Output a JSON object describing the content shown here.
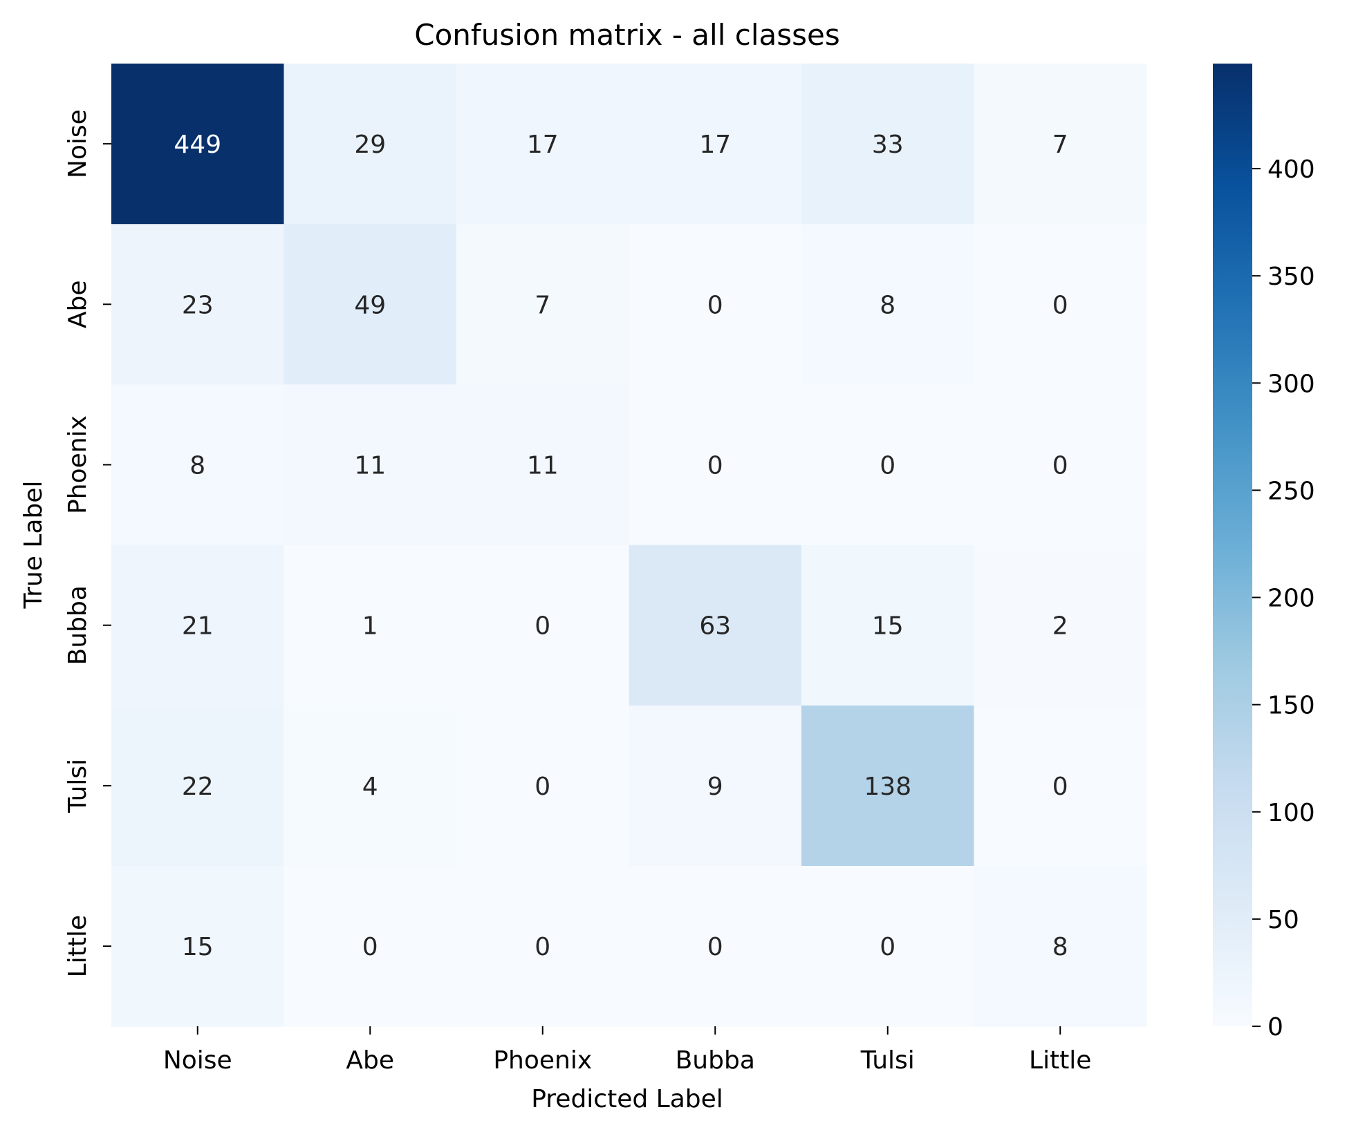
{
  "chart_data": {
    "type": "heatmap",
    "title": "Confusion matrix - all classes",
    "xlabel": "Predicted Label",
    "ylabel": "True Label",
    "x_categories": [
      "Noise",
      "Abe",
      "Phoenix",
      "Bubba",
      "Tulsi",
      "Little"
    ],
    "y_categories": [
      "Noise",
      "Abe",
      "Phoenix",
      "Bubba",
      "Tulsi",
      "Little"
    ],
    "values": [
      [
        449,
        29,
        17,
        17,
        33,
        7
      ],
      [
        23,
        49,
        7,
        0,
        8,
        0
      ],
      [
        8,
        11,
        11,
        0,
        0,
        0
      ],
      [
        21,
        1,
        0,
        63,
        15,
        2
      ],
      [
        22,
        4,
        0,
        9,
        138,
        0
      ],
      [
        15,
        0,
        0,
        0,
        0,
        8
      ]
    ],
    "colormap": "Blues",
    "colorbar": {
      "range": [
        0,
        449
      ],
      "ticks": [
        0,
        50,
        100,
        150,
        200,
        250,
        300,
        350,
        400
      ],
      "tick_labels": [
        "0",
        "50",
        "100",
        "150",
        "200",
        "250",
        "300",
        "350",
        "400"
      ]
    },
    "grid": false,
    "annotation_colors": {
      "dark": "#262626",
      "light": "#ffffff"
    }
  }
}
